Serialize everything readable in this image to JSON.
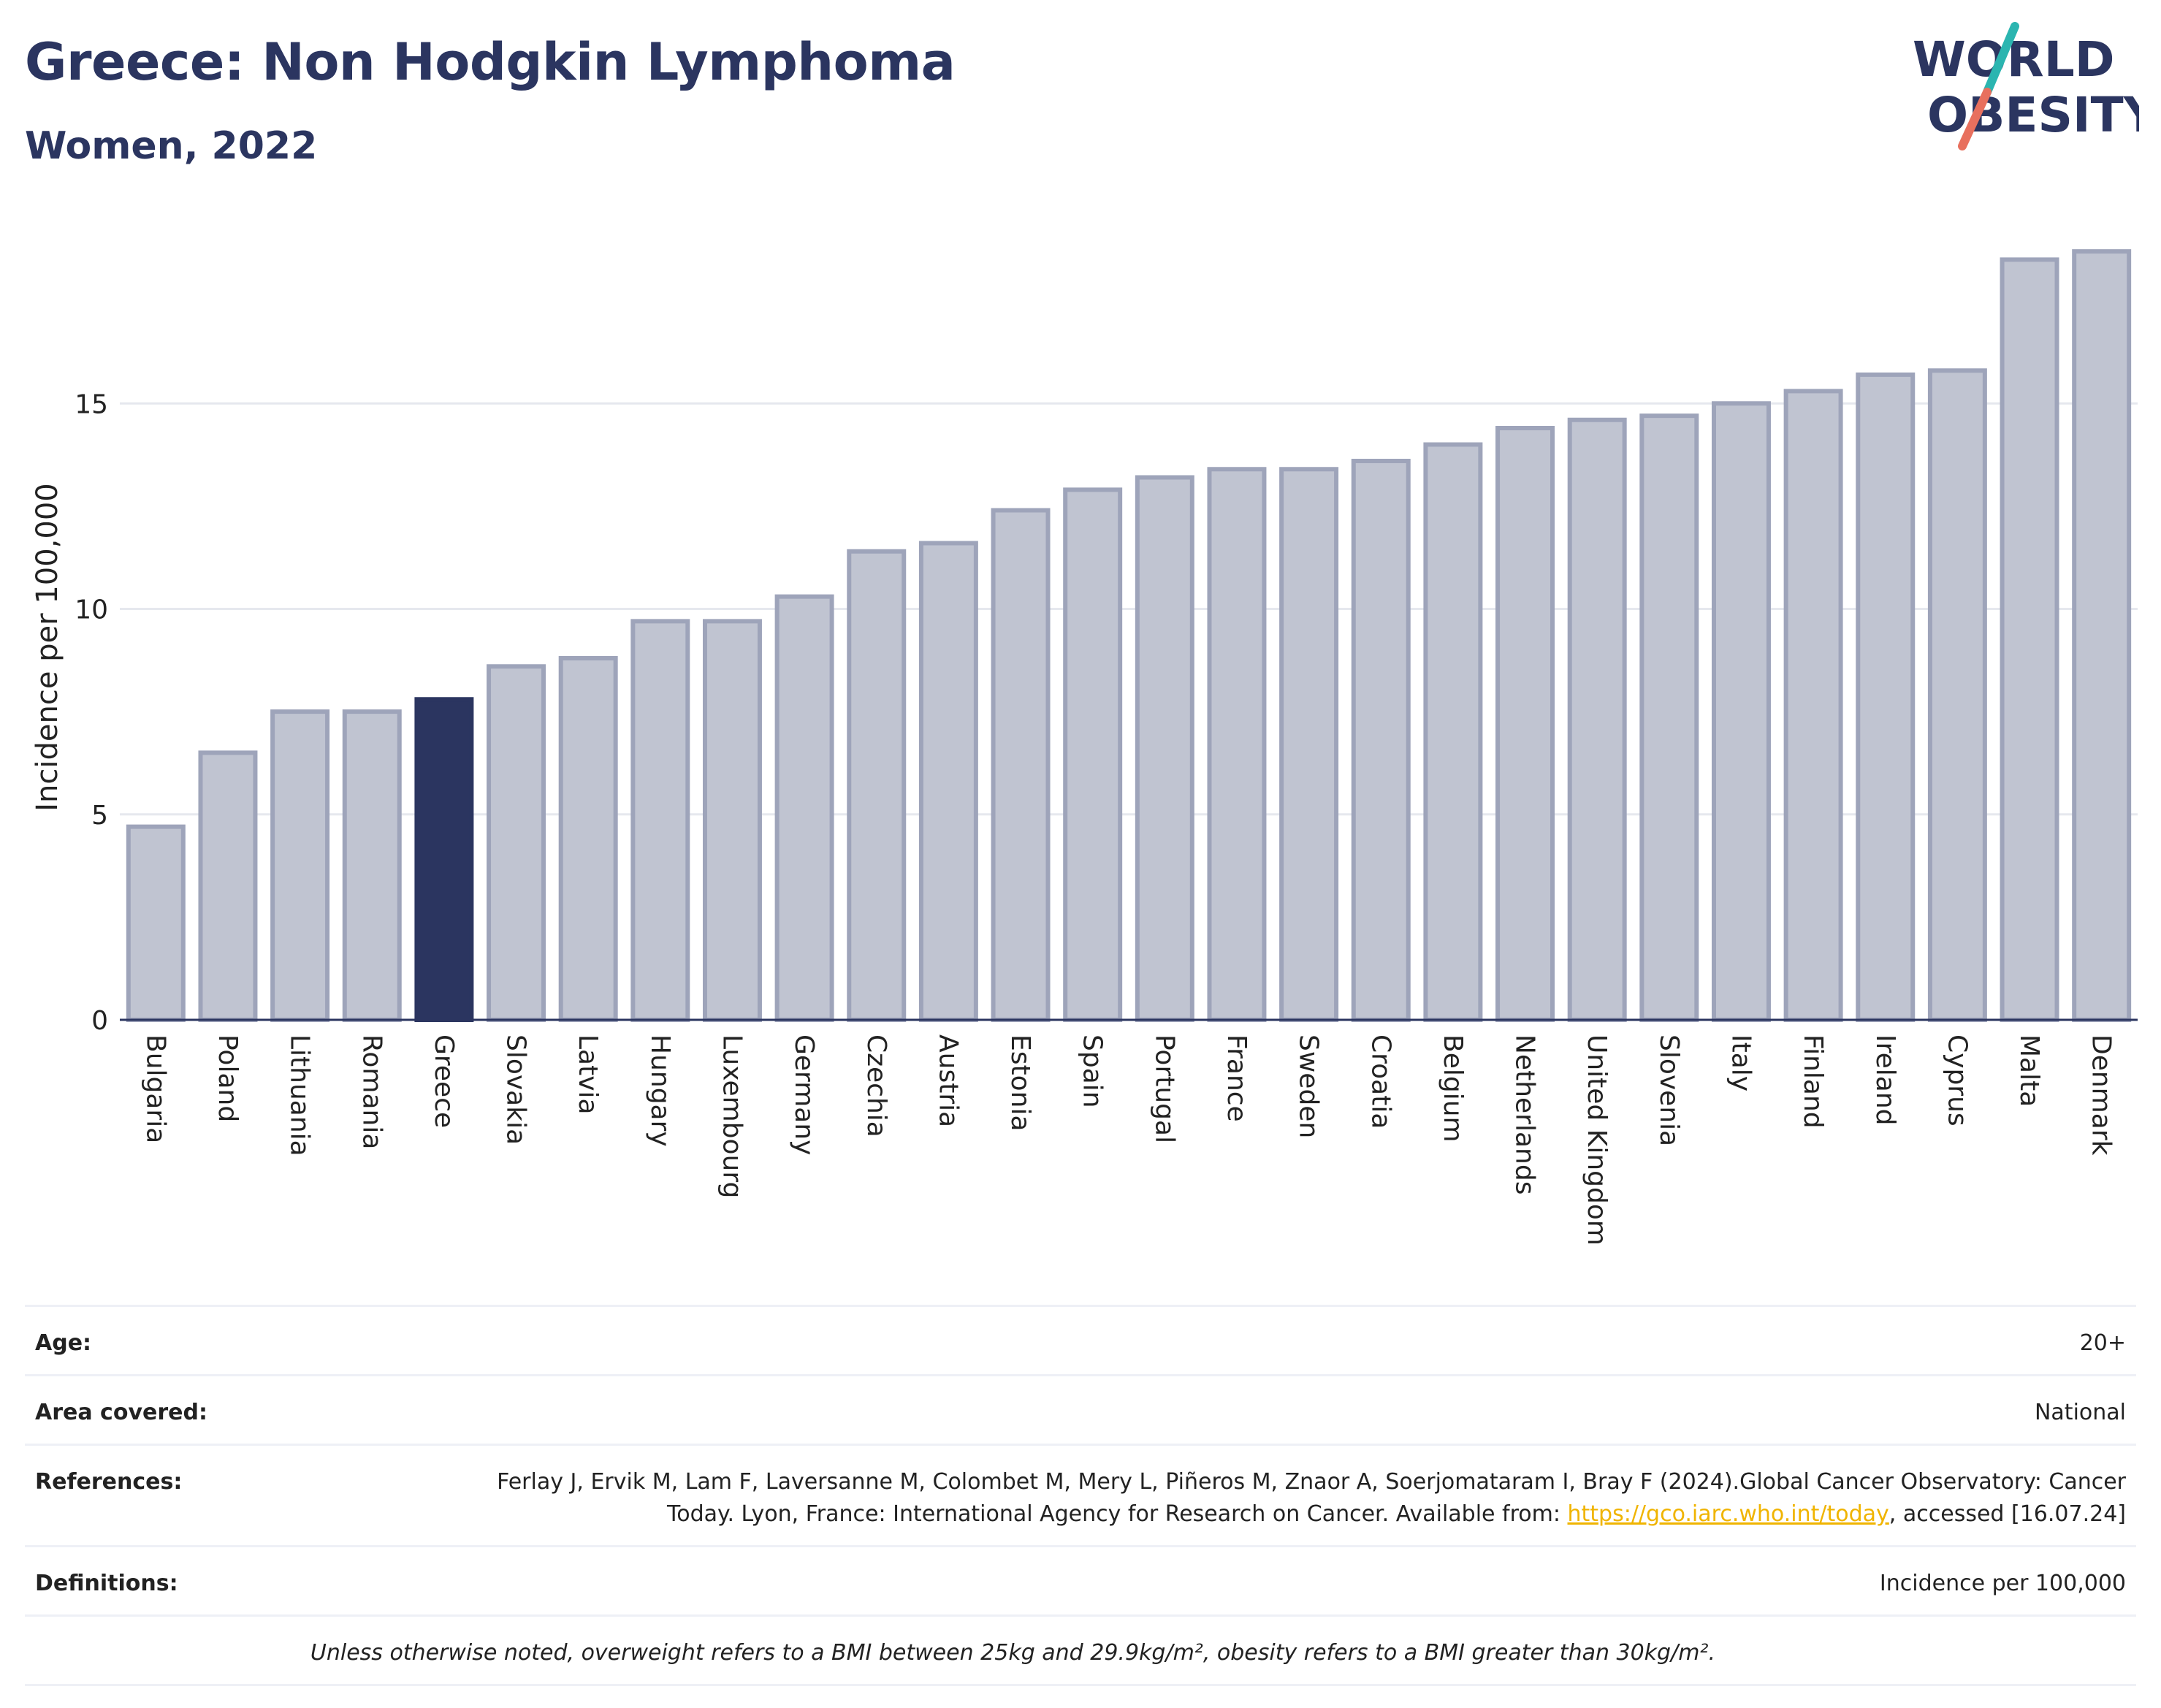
{
  "header": {
    "title": "Greece: Non Hodgkin Lymphoma",
    "subtitle": "Women, 2022"
  },
  "logo": {
    "line1": "WORLD",
    "line2": "OBESITY"
  },
  "chart_data": {
    "type": "bar",
    "title": "Greece: Non Hodgkin Lymphoma",
    "subtitle": "Women, 2022",
    "ylabel": "Incidence per 100,000",
    "xlabel": "",
    "ylim": [
      0,
      19.2
    ],
    "yticks": [
      0,
      5,
      10,
      15
    ],
    "grid": true,
    "highlight": "Greece",
    "colors": {
      "bar": "#c0c4d1",
      "bar_border": "#9ea4ba",
      "highlight": "#2b3560"
    },
    "categories": [
      "Bulgaria",
      "Poland",
      "Lithuania",
      "Romania",
      "Greece",
      "Slovakia",
      "Latvia",
      "Hungary",
      "Luxembourg",
      "Germany",
      "Czechia",
      "Austria",
      "Estonia",
      "Spain",
      "Portugal",
      "France",
      "Sweden",
      "Croatia",
      "Belgium",
      "Netherlands",
      "United Kingdom",
      "Slovenia",
      "Italy",
      "Finland",
      "Ireland",
      "Cyprus",
      "Malta",
      "Denmark"
    ],
    "values": [
      4.7,
      6.5,
      7.5,
      7.5,
      7.8,
      8.6,
      8.8,
      9.7,
      9.7,
      10.3,
      11.4,
      11.6,
      12.4,
      12.9,
      13.2,
      13.4,
      13.4,
      13.6,
      14.0,
      14.4,
      14.6,
      14.7,
      15.0,
      15.3,
      15.7,
      15.8,
      18.5,
      18.7
    ]
  },
  "info": {
    "age": {
      "label": "Age:",
      "value": "20+"
    },
    "area": {
      "label": "Area covered:",
      "value": "National"
    },
    "references": {
      "label": "References:",
      "text": "Ferlay J, Ervik M, Lam F, Laversanne M, Colombet M, Mery L, Piñeros M, Znaor A, Soerjomataram I, Bray F (2024).Global Cancer Observatory: Cancer Today. Lyon, France: International Agency for Research on Cancer. Available from: ",
      "link": "https://gco.iarc.who.int/today",
      "suffix": ", accessed [16.07.24]"
    },
    "definitions": {
      "label": "Definitions:",
      "value": "Incidence per 100,000"
    },
    "note": "Unless otherwise noted, overweight refers to a BMI between 25kg and 29.9kg/m², obesity refers to a BMI greater than 30kg/m²."
  }
}
